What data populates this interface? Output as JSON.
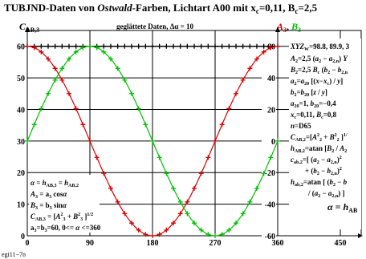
{
  "chart_data": {
    "type": "line",
    "title_pre": "TUBJND-Daten von ",
    "title_italic": "Ostwald",
    "title_post": "-Farben, Lichtart A00 mit x",
    "title_sub": "c",
    "title_mid": "=0,11, B",
    "title_sub2": "c",
    "title_end": "=2,5",
    "subtitle": "geglättete Daten, Δα = 10",
    "ylabel_left": "C",
    "ylabel_left_sub": "AB,3",
    "ylabel_right_a": "A",
    "ylabel_right_a_sub": "3",
    "ylabel_right_sep": ", ",
    "ylabel_right_b": "B",
    "ylabel_right_b_sub": "3",
    "xlim": [
      0,
      480
    ],
    "ylim": [
      0,
      65
    ],
    "xticks": [
      0,
      90,
      180,
      270,
      360,
      450
    ],
    "yticks_left": [
      0,
      10,
      20,
      30,
      40,
      50,
      60
    ],
    "yticks_right": [
      "-60",
      "-40",
      "-20",
      "0",
      "20",
      "40",
      "60"
    ],
    "series": [
      {
        "key": "C",
        "color": "#000000",
        "amplitude": 60,
        "shape": "const",
        "marker": "plus"
      },
      {
        "key": "A",
        "color": "#d80000",
        "amplitude": 60,
        "shape": "cos",
        "marker": "plus"
      },
      {
        "key": "B",
        "color": "#00c000",
        "amplitude": 60,
        "shape": "sin",
        "marker": "plus"
      }
    ],
    "legend_left": [
      "α = h",
      "A",
      "B",
      "C",
      "a"
    ],
    "annotation_right": [
      "XYZ",
      "A",
      "B",
      "a",
      "b",
      "a",
      "x",
      "n=D65",
      "C",
      "h",
      "c",
      "+ (b",
      "h",
      "/ (a",
      "α = h"
    ],
    "footer": "egi11−7n"
  }
}
